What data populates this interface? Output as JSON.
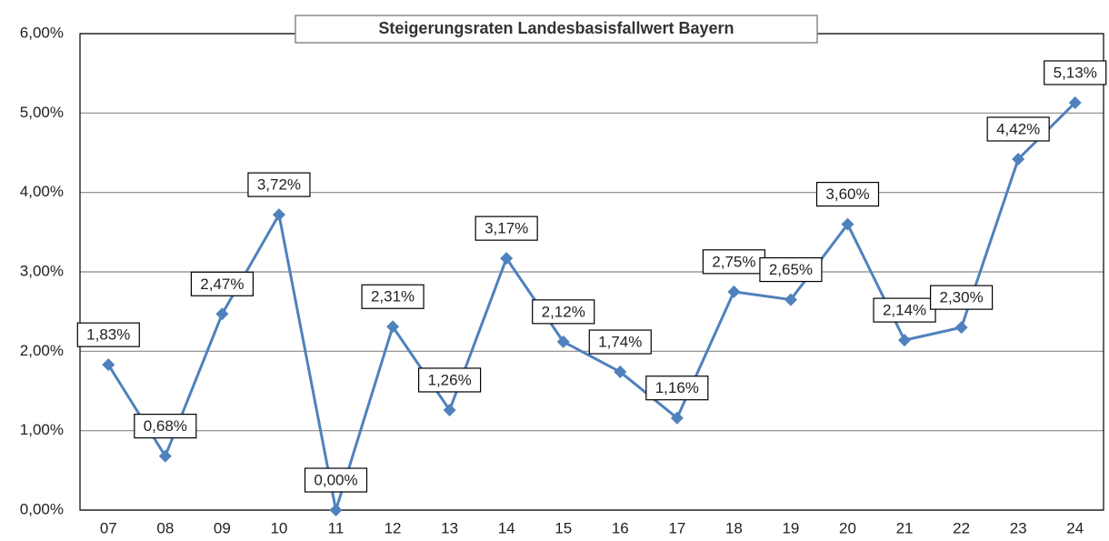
{
  "chart_data": {
    "type": "line",
    "title": "Steigerungsraten Landesbasisfallwert Bayern",
    "categories": [
      "07",
      "08",
      "09",
      "10",
      "11",
      "12",
      "13",
      "14",
      "15",
      "16",
      "17",
      "18",
      "19",
      "20",
      "21",
      "22",
      "23",
      "24"
    ],
    "values": [
      1.83,
      0.68,
      2.47,
      3.72,
      0.0,
      2.31,
      1.26,
      3.17,
      2.12,
      1.74,
      1.16,
      2.75,
      2.65,
      3.6,
      2.14,
      2.3,
      4.42,
      5.13
    ],
    "value_labels": [
      "1,83%",
      "0,68%",
      "2,47%",
      "3,72%",
      "0,00%",
      "2,31%",
      "1,26%",
      "3,17%",
      "2,12%",
      "1,74%",
      "1,16%",
      "2,75%",
      "2,65%",
      "3,60%",
      "2,14%",
      "2,30%",
      "4,42%",
      "5,13%"
    ],
    "color": "#4f81bd",
    "ylim": [
      0,
      6
    ],
    "yticks": [
      {
        "value": 0,
        "label": "0,00%"
      },
      {
        "value": 1,
        "label": "1,00%"
      },
      {
        "value": 2,
        "label": "2,00%"
      },
      {
        "value": 3,
        "label": "3,00%"
      },
      {
        "value": 4,
        "label": "4,00%"
      },
      {
        "value": 5,
        "label": "5,00%"
      },
      {
        "value": 6,
        "label": "6,00%"
      }
    ],
    "grid": true
  }
}
